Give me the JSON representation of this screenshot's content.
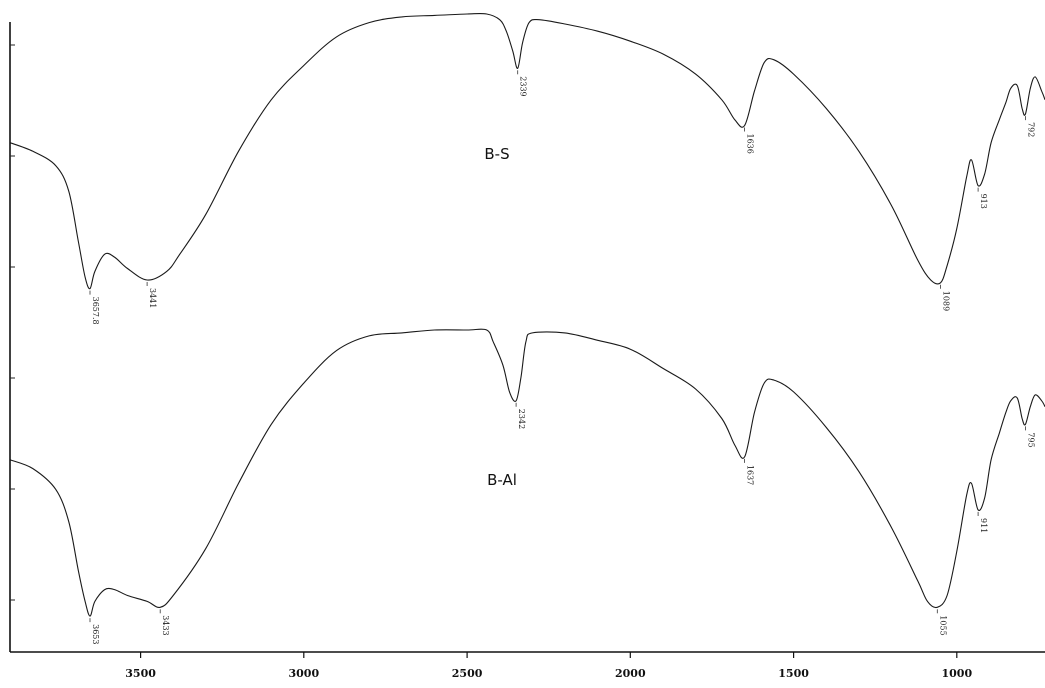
{
  "chart_data": {
    "type": "line",
    "xlabel": "",
    "ylabel": "",
    "x_reversed": true,
    "xlim": [
      3900,
      730
    ],
    "x_ticks": [
      {
        "value": 3500,
        "label": "3500"
      },
      {
        "value": 3000,
        "label": "3000"
      },
      {
        "value": 2500,
        "label": "2500"
      },
      {
        "value": 2000,
        "label": "2000"
      },
      {
        "value": 1500,
        "label": "1500"
      },
      {
        "value": 1000,
        "label": "1000"
      }
    ],
    "y_axis_ticks": 6,
    "series": [
      {
        "name": "B-S",
        "ylim": [
          0,
          100
        ],
        "points": [
          [
            3900,
            55
          ],
          [
            3830,
            52
          ],
          [
            3760,
            47
          ],
          [
            3720,
            38
          ],
          [
            3690,
            20
          ],
          [
            3670,
            8
          ],
          [
            3655,
            4
          ],
          [
            3640,
            10
          ],
          [
            3610,
            16
          ],
          [
            3580,
            15
          ],
          [
            3540,
            11
          ],
          [
            3480,
            7
          ],
          [
            3420,
            10
          ],
          [
            3380,
            16
          ],
          [
            3300,
            30
          ],
          [
            3200,
            52
          ],
          [
            3100,
            70
          ],
          [
            3000,
            82
          ],
          [
            2900,
            92
          ],
          [
            2800,
            97
          ],
          [
            2700,
            99
          ],
          [
            2600,
            99.5
          ],
          [
            2500,
            100
          ],
          [
            2440,
            100
          ],
          [
            2400,
            98
          ],
          [
            2380,
            94
          ],
          [
            2360,
            87
          ],
          [
            2345,
            81
          ],
          [
            2330,
            90
          ],
          [
            2310,
            97
          ],
          [
            2280,
            98
          ],
          [
            2200,
            96.5
          ],
          [
            2100,
            94
          ],
          [
            2000,
            90.5
          ],
          [
            1900,
            86
          ],
          [
            1800,
            79
          ],
          [
            1720,
            70
          ],
          [
            1680,
            63
          ],
          [
            1650,
            61
          ],
          [
            1620,
            73
          ],
          [
            1590,
            83
          ],
          [
            1560,
            84
          ],
          [
            1500,
            79
          ],
          [
            1400,
            67
          ],
          [
            1300,
            52
          ],
          [
            1200,
            33
          ],
          [
            1120,
            14
          ],
          [
            1080,
            7
          ],
          [
            1050,
            6
          ],
          [
            1030,
            12
          ],
          [
            1000,
            25
          ],
          [
            970,
            43
          ],
          [
            955,
            49
          ],
          [
            935,
            40
          ],
          [
            915,
            44
          ],
          [
            895,
            55
          ],
          [
            870,
            63
          ],
          [
            850,
            69
          ],
          [
            835,
            74
          ],
          [
            815,
            75
          ],
          [
            800,
            67
          ],
          [
            790,
            65
          ],
          [
            775,
            74
          ],
          [
            760,
            78
          ],
          [
            740,
            73
          ],
          [
            730,
            70
          ]
        ]
      },
      {
        "name": "B-Al",
        "ylim": [
          0,
          100
        ],
        "points": [
          [
            3900,
            56
          ],
          [
            3830,
            53
          ],
          [
            3760,
            46
          ],
          [
            3720,
            35
          ],
          [
            3690,
            18
          ],
          [
            3670,
            8
          ],
          [
            3655,
            3
          ],
          [
            3640,
            8
          ],
          [
            3610,
            12
          ],
          [
            3580,
            12
          ],
          [
            3540,
            10
          ],
          [
            3480,
            8
          ],
          [
            3440,
            6
          ],
          [
            3400,
            10
          ],
          [
            3300,
            26
          ],
          [
            3200,
            48
          ],
          [
            3100,
            68
          ],
          [
            3000,
            82
          ],
          [
            2900,
            93
          ],
          [
            2800,
            98
          ],
          [
            2700,
            99
          ],
          [
            2600,
            100
          ],
          [
            2500,
            100
          ],
          [
            2440,
            100
          ],
          [
            2420,
            96
          ],
          [
            2390,
            88
          ],
          [
            2370,
            79
          ],
          [
            2350,
            76
          ],
          [
            2335,
            84
          ],
          [
            2320,
            96
          ],
          [
            2300,
            99
          ],
          [
            2200,
            99
          ],
          [
            2100,
            96.5
          ],
          [
            2000,
            93.5
          ],
          [
            1900,
            87
          ],
          [
            1800,
            80
          ],
          [
            1720,
            70
          ],
          [
            1680,
            61
          ],
          [
            1650,
            57
          ],
          [
            1620,
            72
          ],
          [
            1590,
            82
          ],
          [
            1560,
            83
          ],
          [
            1500,
            79
          ],
          [
            1400,
            67
          ],
          [
            1300,
            52
          ],
          [
            1200,
            33
          ],
          [
            1120,
            15
          ],
          [
            1090,
            8
          ],
          [
            1060,
            6
          ],
          [
            1030,
            10
          ],
          [
            1000,
            25
          ],
          [
            970,
            44
          ],
          [
            955,
            48
          ],
          [
            935,
            39
          ],
          [
            915,
            43
          ],
          [
            895,
            56
          ],
          [
            870,
            65
          ],
          [
            850,
            72
          ],
          [
            835,
            76
          ],
          [
            815,
            77
          ],
          [
            800,
            70
          ],
          [
            790,
            68
          ],
          [
            775,
            74
          ],
          [
            760,
            78
          ],
          [
            740,
            76
          ],
          [
            730,
            74
          ]
        ]
      }
    ],
    "peak_labels": [
      {
        "series": "B-S",
        "x": 3655,
        "text": "3657.8"
      },
      {
        "series": "B-S",
        "x": 3480,
        "text": "3441"
      },
      {
        "series": "B-S",
        "x": 2345,
        "text": "2339"
      },
      {
        "series": "B-S",
        "x": 1650,
        "text": "1636"
      },
      {
        "series": "B-S",
        "x": 1050,
        "text": "1089"
      },
      {
        "series": "B-S",
        "x": 935,
        "text": "913"
      },
      {
        "series": "B-S",
        "x": 790,
        "text": "792"
      },
      {
        "series": "B-Al",
        "x": 3655,
        "text": "3653"
      },
      {
        "series": "B-Al",
        "x": 3440,
        "text": "3433"
      },
      {
        "series": "B-Al",
        "x": 2350,
        "text": "2342"
      },
      {
        "series": "B-Al",
        "x": 1650,
        "text": "1637"
      },
      {
        "series": "B-Al",
        "x": 1060,
        "text": "1055"
      },
      {
        "series": "B-Al",
        "x": 935,
        "text": "911"
      },
      {
        "series": "B-Al",
        "x": 790,
        "text": "795"
      }
    ]
  }
}
